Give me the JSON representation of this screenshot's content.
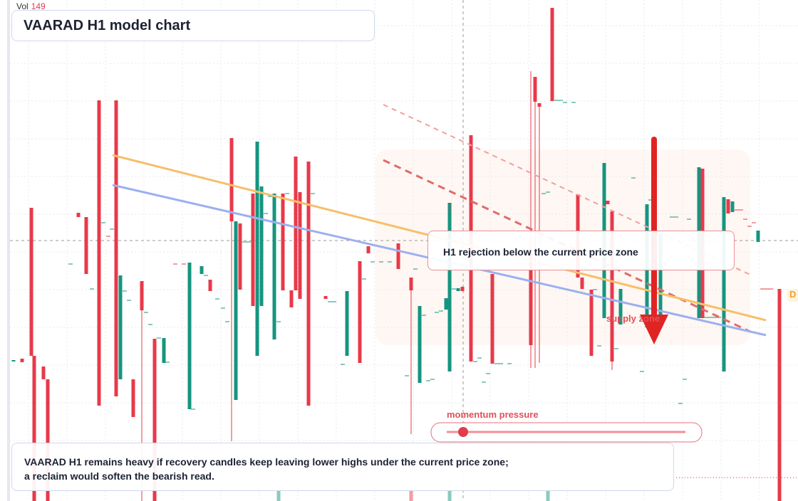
{
  "volume": {
    "label": "Vol",
    "value": "149"
  },
  "header": {
    "title": "VAARAD H1 model chart"
  },
  "annotations": {
    "rejection": "H1 rejection below the current price zone",
    "zone": "supply zone"
  },
  "slider": {
    "label": "momentum pressure"
  },
  "price_tag": "D",
  "footer": {
    "text": "VAARAD H1 remains heavy if recovery candles keep leaving lower highs under the current price zone; a reclaim would soften the bearish read."
  }
}
